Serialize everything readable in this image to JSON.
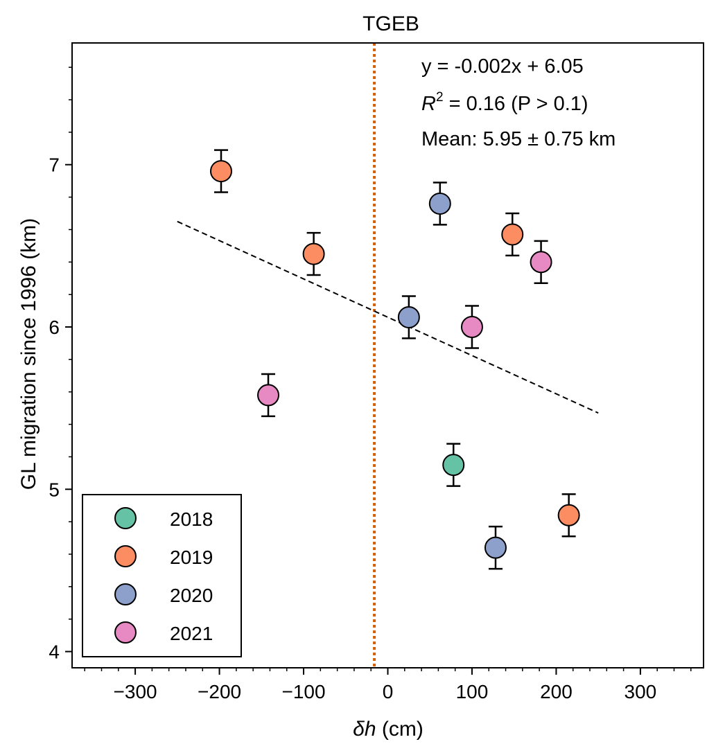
{
  "chart_data": {
    "type": "scatter",
    "title": "TGEB",
    "xlabel_var": "δh",
    "xlabel_unit": " (cm)",
    "ylabel": "GL migration since 1996 (km)",
    "xlim": [
      -375,
      375
    ],
    "ylim": [
      3.9,
      7.75
    ],
    "xticks": [
      -300,
      -200,
      -100,
      0,
      100,
      200,
      300
    ],
    "xtick_labels": [
      "−300",
      "−200",
      "−100",
      "0",
      "100",
      "200",
      "300"
    ],
    "yticks": [
      4,
      5,
      6,
      7
    ],
    "ytick_labels": [
      "4",
      "5",
      "6",
      "7"
    ],
    "x_minor_step": 20,
    "y_minor_step": 0.2,
    "grid": false,
    "vline": {
      "x": -16,
      "color": "#d95f02",
      "style": "dotted"
    },
    "fit": {
      "x": [
        -250,
        250
      ],
      "y": [
        6.65,
        5.47
      ],
      "style": "dashed",
      "color": "#000000"
    },
    "annotations": {
      "equation": "y = -0.002x + 6.05",
      "r2_symbol": "R",
      "r2_exp": "2",
      "r2_rest": " = 0.16 (P > 0.1)",
      "mean": "Mean: 5.95 ± 0.75 km"
    },
    "legend_position": "lower-left",
    "series": [
      {
        "name": "2018",
        "color": "#66c2a5",
        "points": [
          {
            "x": 78,
            "y": 5.15,
            "err": 0.13
          }
        ]
      },
      {
        "name": "2019",
        "color": "#fc8d62",
        "points": [
          {
            "x": -198,
            "y": 6.96,
            "err": 0.13
          },
          {
            "x": -88,
            "y": 6.45,
            "err": 0.13
          },
          {
            "x": 148,
            "y": 6.57,
            "err": 0.13
          },
          {
            "x": 215,
            "y": 4.84,
            "err": 0.13
          }
        ]
      },
      {
        "name": "2020",
        "color": "#8da0cb",
        "points": [
          {
            "x": 62,
            "y": 6.76,
            "err": 0.13
          },
          {
            "x": 25,
            "y": 6.06,
            "err": 0.13
          },
          {
            "x": 128,
            "y": 4.64,
            "err": 0.13
          }
        ]
      },
      {
        "name": "2021",
        "color": "#e78ac3",
        "points": [
          {
            "x": -142,
            "y": 5.58,
            "err": 0.13
          },
          {
            "x": 100,
            "y": 6.0,
            "err": 0.13
          },
          {
            "x": 182,
            "y": 6.4,
            "err": 0.13
          }
        ]
      }
    ]
  }
}
